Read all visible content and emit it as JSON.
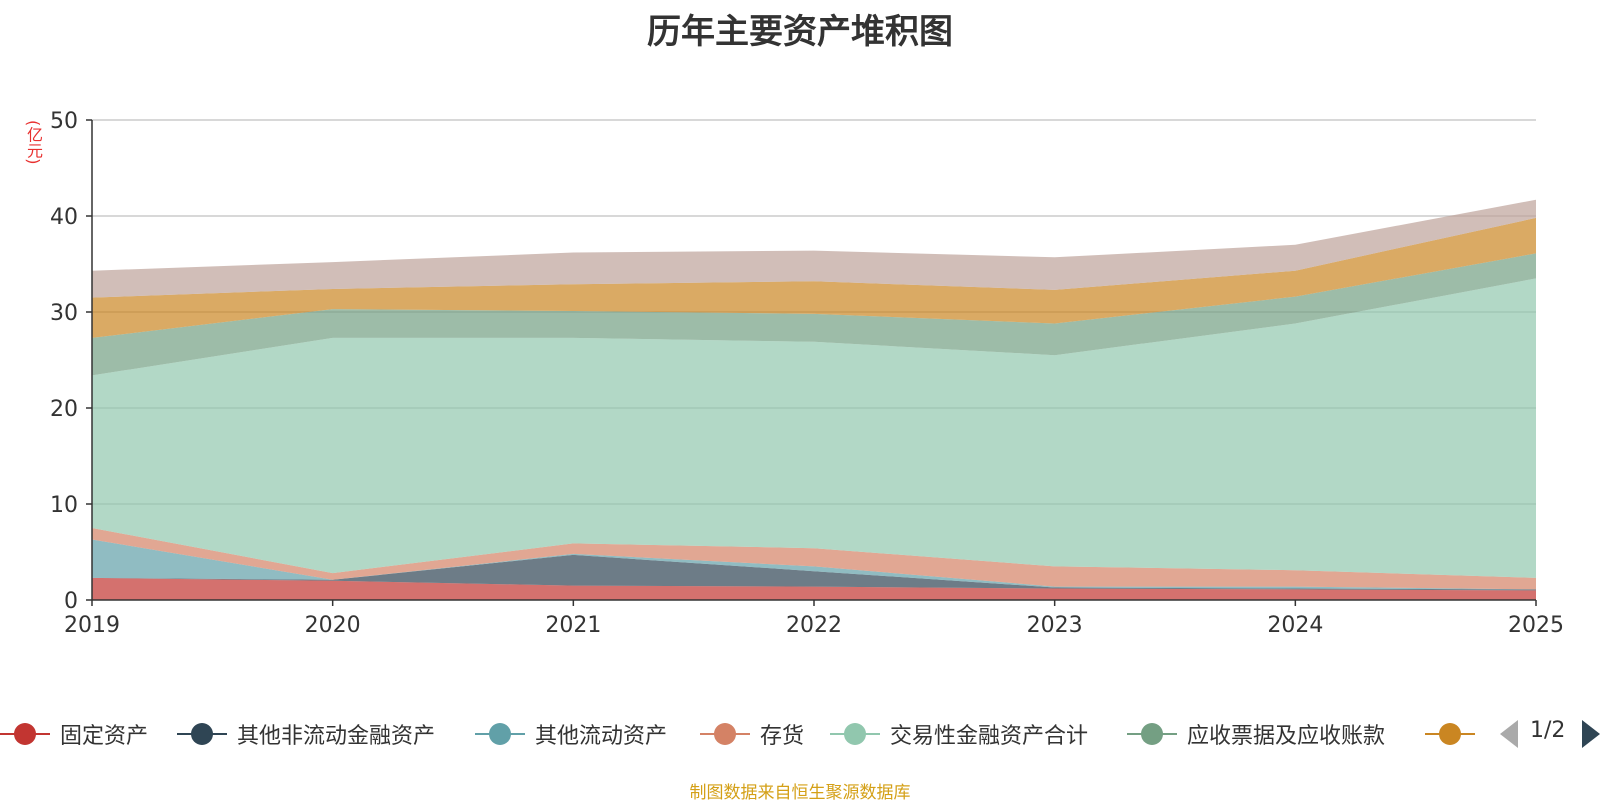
{
  "chart_data": {
    "type": "area",
    "stacked": true,
    "title": "历年主要资产堆积图",
    "ylabel": "(亿元)",
    "ylim": [
      0,
      50
    ],
    "yticks": [
      0,
      10,
      20,
      30,
      40,
      50
    ],
    "categories": [
      "2019",
      "2020",
      "2021",
      "2022",
      "2023",
      "2024",
      "2025"
    ],
    "grid": true,
    "legend_placement": "bottom",
    "series": [
      {
        "name": "固定资产",
        "color": "#c23531",
        "values": [
          2.3,
          2.0,
          1.5,
          1.4,
          1.2,
          1.1,
          1.0
        ]
      },
      {
        "name": "其他非流动金融资产",
        "color": "#2f4554",
        "values": [
          0.0,
          0.1,
          3.2,
          1.6,
          0.1,
          0.1,
          0.1
        ]
      },
      {
        "name": "其他流动资产",
        "color": "#61a0a8",
        "values": [
          4.0,
          0.0,
          0.1,
          0.5,
          0.1,
          0.2,
          0.0
        ]
      },
      {
        "name": "存货",
        "color": "#d48265",
        "values": [
          1.2,
          0.7,
          1.1,
          1.9,
          2.1,
          1.7,
          1.2
        ]
      },
      {
        "name": "交易性金融资产合计",
        "color": "#91c7ae",
        "values": [
          15.9,
          24.5,
          21.4,
          21.5,
          22.0,
          25.7,
          31.2
        ]
      },
      {
        "name": "应收票据及应收账款",
        "color": "#749f83",
        "values": [
          3.9,
          3.0,
          2.8,
          2.9,
          3.3,
          2.8,
          2.6
        ]
      },
      {
        "name": "",
        "color": "#ca8622",
        "values": [
          4.2,
          2.1,
          2.8,
          3.4,
          3.5,
          2.7,
          3.7
        ]
      },
      {
        "name": "",
        "color": "#bda29a",
        "values": [
          2.8,
          2.8,
          3.3,
          3.2,
          3.4,
          2.7,
          1.9
        ]
      }
    ]
  },
  "legend_visible_count": 7,
  "pager": {
    "text": "1/2"
  },
  "footer": {
    "source": "制图数据来自恒生聚源数据库"
  }
}
